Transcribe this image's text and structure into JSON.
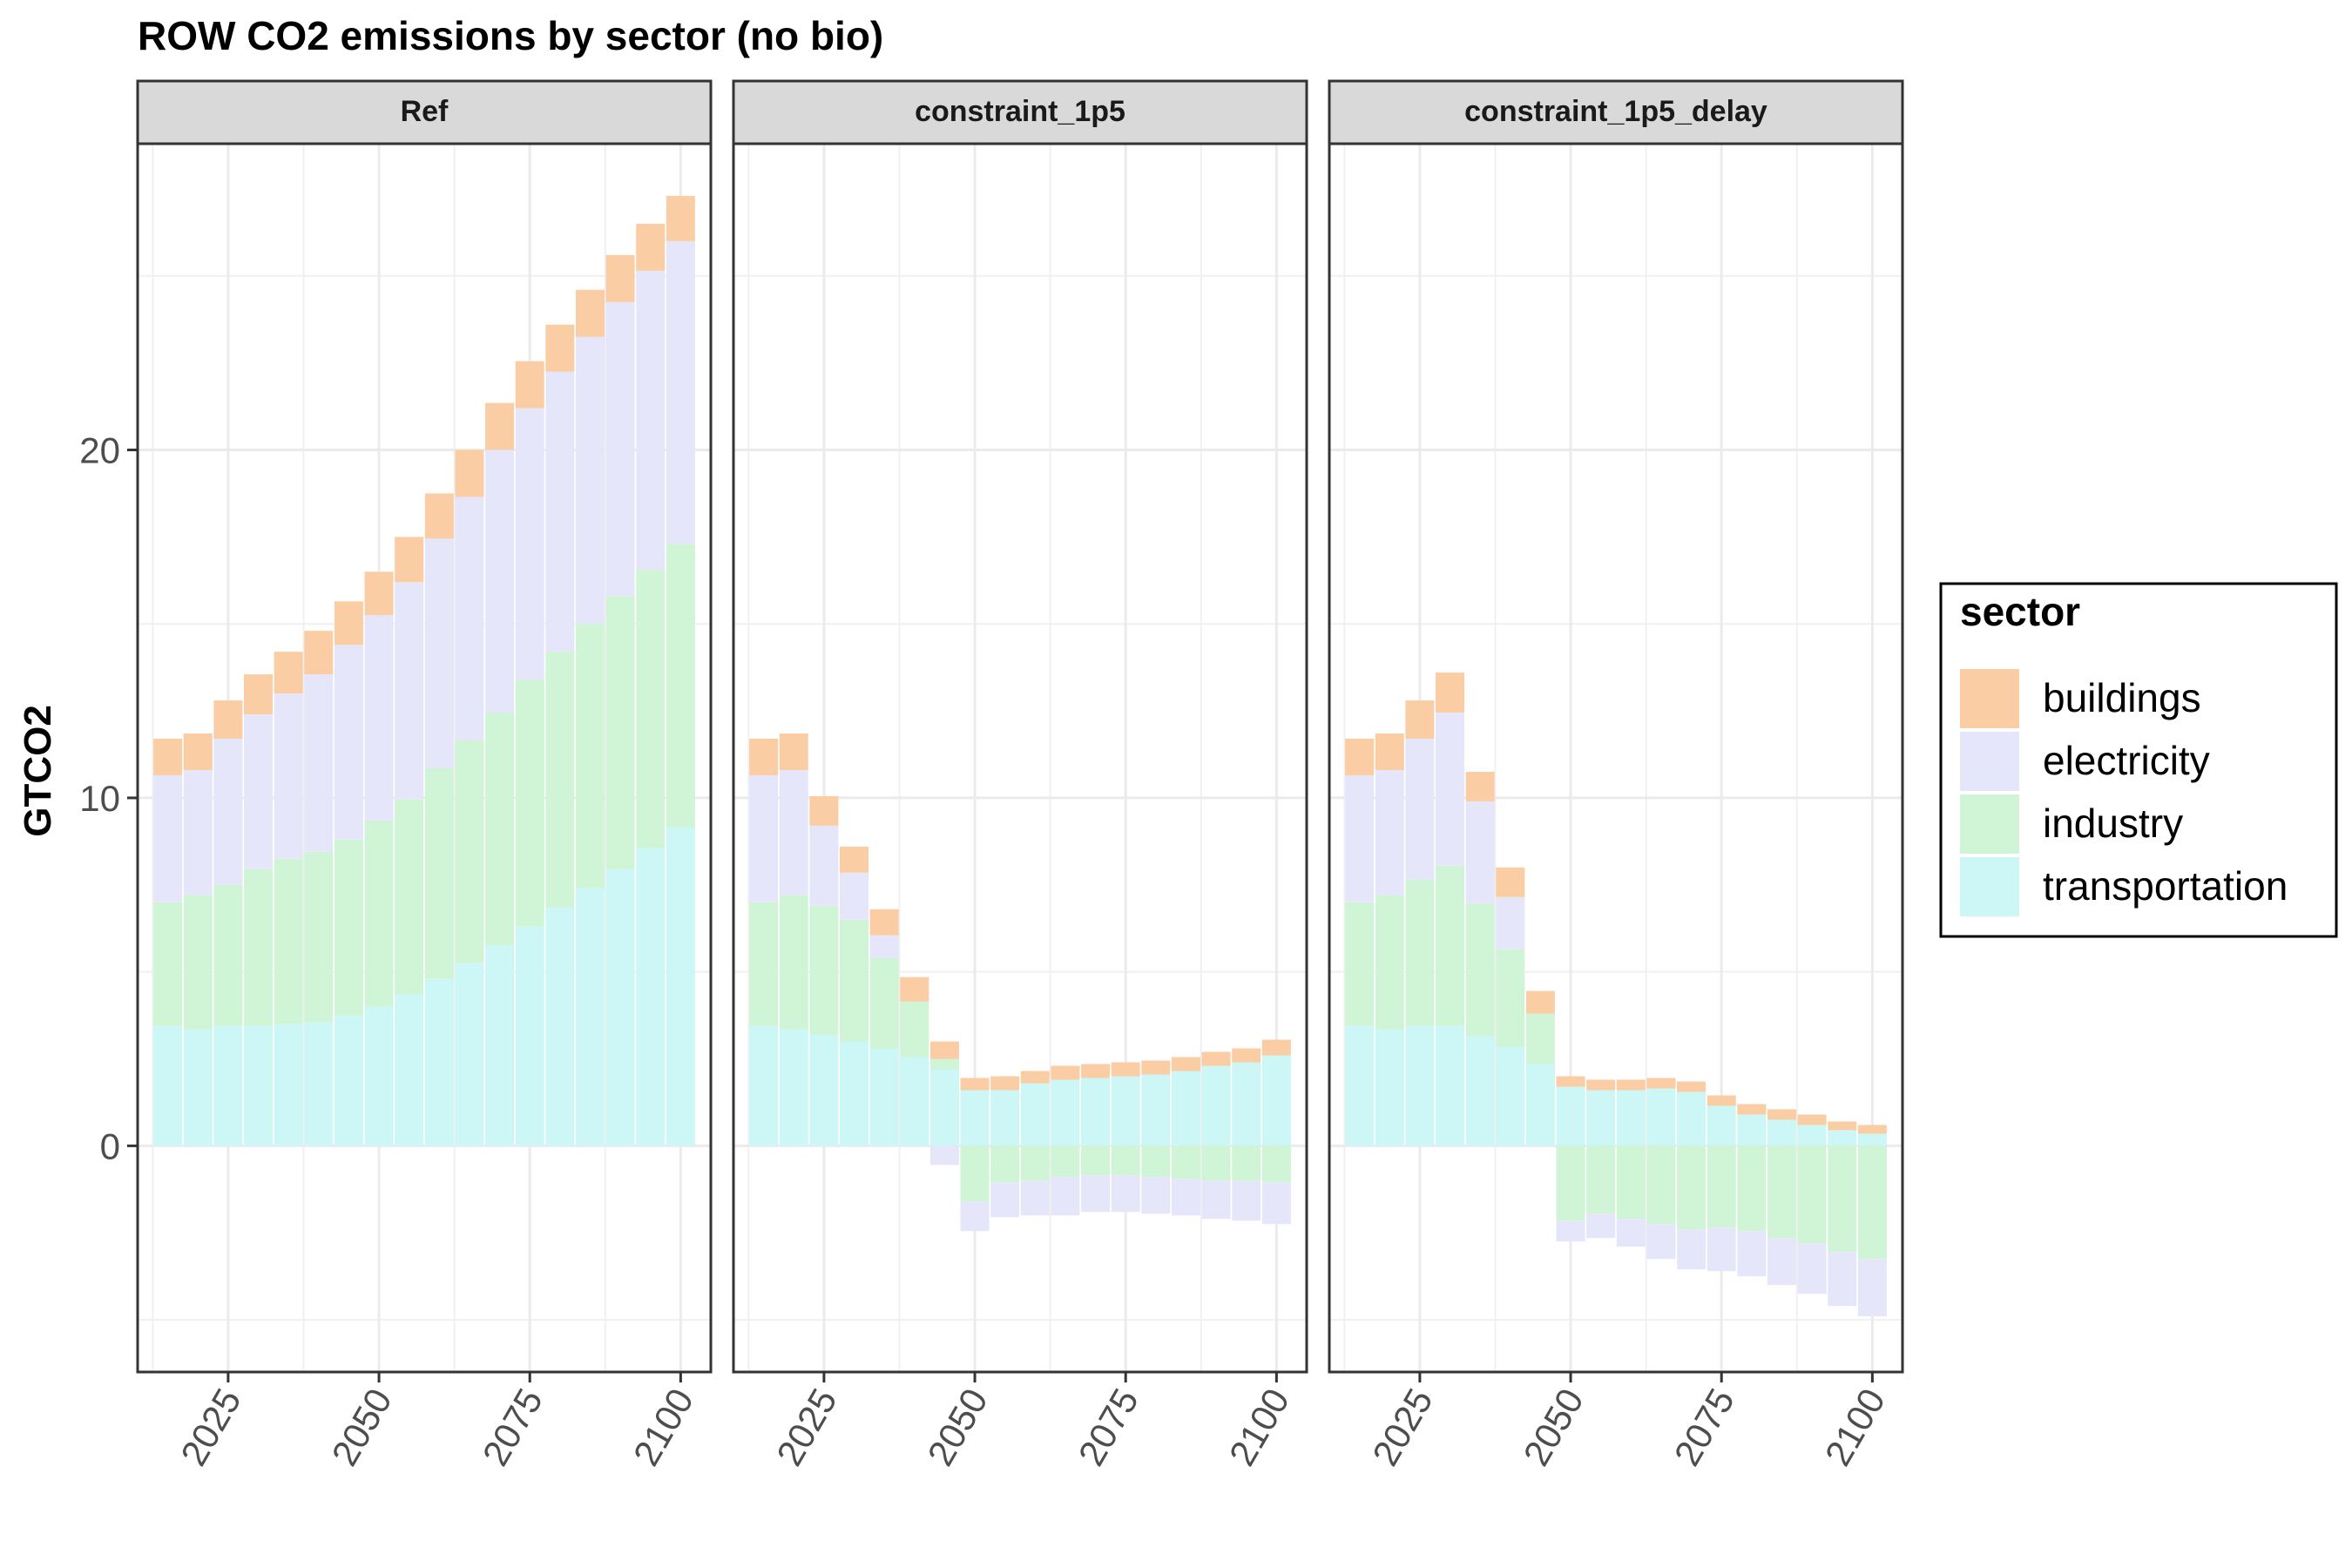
{
  "chart_data": {
    "type": "bar",
    "stacked": true,
    "title": "ROW CO2 emissions by sector (no bio)",
    "ylabel": "GTCO2",
    "xlabel": "",
    "xlim": [
      2010,
      2105
    ],
    "ylim": [
      -6.5,
      28.8
    ],
    "x_ticks": [
      2025,
      2050,
      2075,
      2100
    ],
    "y_ticks": [
      0,
      10,
      20
    ],
    "grid": true,
    "legend": {
      "title": "sector",
      "position": "right",
      "entries": [
        "buildings",
        "electricity",
        "industry",
        "transportation"
      ]
    },
    "colors": {
      "buildings": "#FACDA4",
      "electricity": "#E6E6FA",
      "industry": "#CFF5D6",
      "transportation": "#CDF6F6"
    },
    "x": [
      2015,
      2020,
      2025,
      2030,
      2035,
      2040,
      2045,
      2050,
      2055,
      2060,
      2065,
      2070,
      2075,
      2080,
      2085,
      2090,
      2095,
      2100
    ],
    "panels": [
      {
        "name": "Ref",
        "series": [
          {
            "name": "transportation",
            "values": [
              3.45,
              3.35,
              3.45,
              3.45,
              3.5,
              3.55,
              3.75,
              4.0,
              4.35,
              4.8,
              5.25,
              5.75,
              6.3,
              6.85,
              7.4,
              7.95,
              8.55,
              9.15
            ]
          },
          {
            "name": "industry",
            "values": [
              3.55,
              3.85,
              4.05,
              4.5,
              4.75,
              4.9,
              5.05,
              5.35,
              5.6,
              6.05,
              6.4,
              6.7,
              7.1,
              7.35,
              7.6,
              7.85,
              8.0,
              8.15
            ]
          },
          {
            "name": "electricity",
            "values": [
              3.65,
              3.6,
              4.2,
              4.45,
              4.75,
              5.1,
              5.6,
              5.9,
              6.25,
              6.6,
              7.0,
              7.55,
              7.8,
              8.05,
              8.25,
              8.45,
              8.6,
              8.7
            ]
          },
          {
            "name": "buildings",
            "values": [
              1.05,
              1.05,
              1.1,
              1.15,
              1.2,
              1.25,
              1.25,
              1.25,
              1.3,
              1.3,
              1.35,
              1.35,
              1.35,
              1.35,
              1.35,
              1.35,
              1.35,
              1.3
            ]
          }
        ]
      },
      {
        "name": "constraint_1p5",
        "series": [
          {
            "name": "transportation",
            "values": [
              3.45,
              3.35,
              3.2,
              3.0,
              2.8,
              2.55,
              2.2,
              1.6,
              1.6,
              1.8,
              1.9,
              1.95,
              2.0,
              2.05,
              2.15,
              2.3,
              2.4,
              2.6
            ]
          },
          {
            "name": "industry",
            "values": [
              3.55,
              3.85,
              3.7,
              3.5,
              2.6,
              1.6,
              0.3,
              -1.6,
              -1.05,
              -1.0,
              -0.9,
              -0.85,
              -0.85,
              -0.9,
              -0.95,
              -1.0,
              -1.0,
              -1.05
            ]
          },
          {
            "name": "electricity",
            "values": [
              3.65,
              3.6,
              2.3,
              1.35,
              0.65,
              0.0,
              -0.55,
              -0.85,
              -1.0,
              -1.0,
              -1.1,
              -1.05,
              -1.05,
              -1.05,
              -1.05,
              -1.1,
              -1.15,
              -1.2
            ]
          },
          {
            "name": "buildings",
            "values": [
              1.05,
              1.05,
              0.85,
              0.75,
              0.75,
              0.7,
              0.5,
              0.35,
              0.4,
              0.35,
              0.4,
              0.4,
              0.4,
              0.4,
              0.4,
              0.4,
              0.4,
              0.45
            ]
          }
        ]
      },
      {
        "name": "constraint_1p5_delay",
        "series": [
          {
            "name": "transportation",
            "values": [
              3.45,
              3.35,
              3.45,
              3.45,
              3.15,
              2.85,
              2.35,
              1.7,
              1.6,
              1.6,
              1.65,
              1.55,
              1.15,
              0.9,
              0.75,
              0.6,
              0.45,
              0.35
            ]
          },
          {
            "name": "industry",
            "values": [
              3.55,
              3.85,
              4.2,
              4.6,
              3.8,
              2.8,
              1.45,
              -2.15,
              -1.95,
              -2.1,
              -2.25,
              -2.4,
              -2.35,
              -2.45,
              -2.65,
              -2.8,
              -3.05,
              -3.25
            ]
          },
          {
            "name": "electricity",
            "values": [
              3.65,
              3.6,
              4.05,
              4.4,
              2.95,
              1.5,
              0.0,
              -0.6,
              -0.7,
              -0.8,
              -1.0,
              -1.15,
              -1.25,
              -1.3,
              -1.35,
              -1.45,
              -1.55,
              -1.65
            ]
          },
          {
            "name": "buildings",
            "values": [
              1.05,
              1.05,
              1.1,
              1.15,
              0.85,
              0.85,
              0.65,
              0.3,
              0.3,
              0.3,
              0.3,
              0.3,
              0.3,
              0.3,
              0.3,
              0.3,
              0.25,
              0.25
            ]
          }
        ]
      }
    ]
  }
}
